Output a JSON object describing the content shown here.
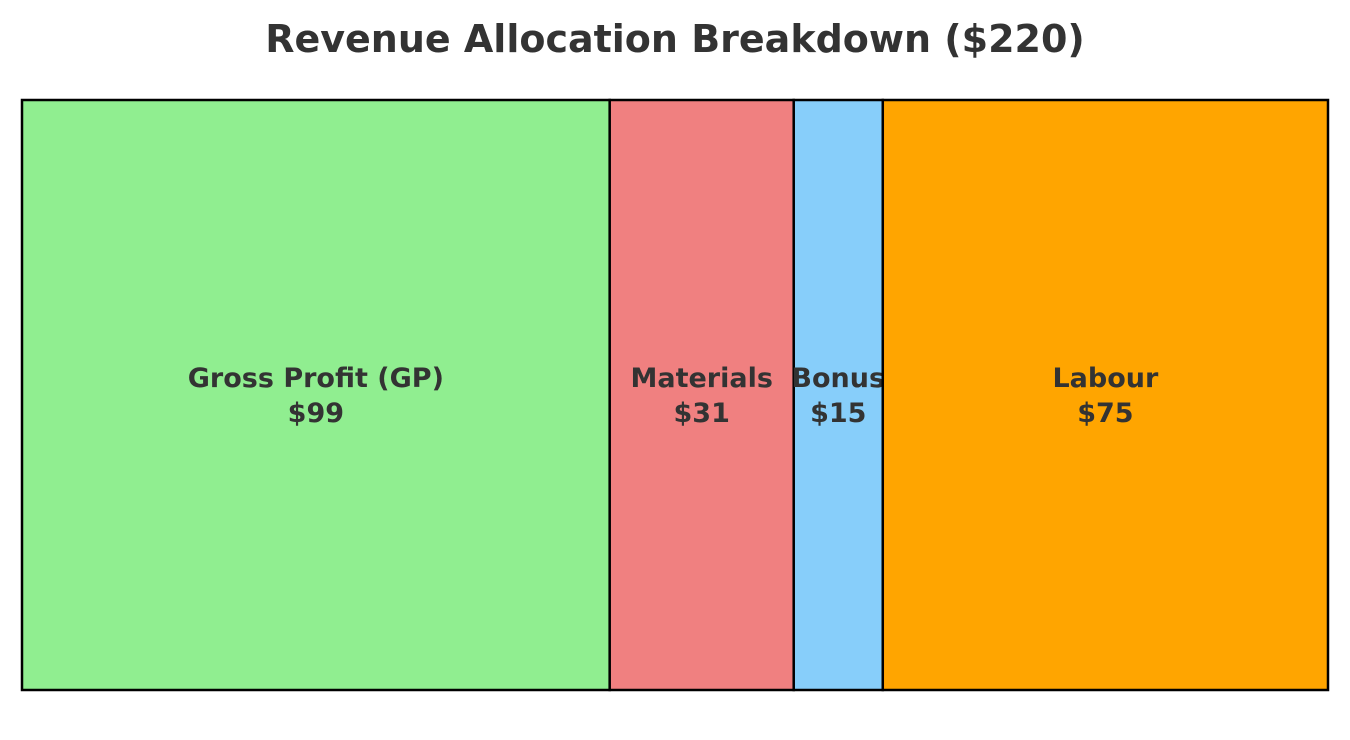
{
  "chart_data": {
    "type": "treemap",
    "title": "Revenue Allocation Breakdown ($220)",
    "total": 220,
    "segments": [
      {
        "name": "Gross Profit (GP)",
        "value": 99,
        "value_label": "$99",
        "color": "#90EE90"
      },
      {
        "name": "Materials",
        "value": 31,
        "value_label": "$31",
        "color": "#F08080"
      },
      {
        "name": "Bonus",
        "value": 15,
        "value_label": "$15",
        "color": "#87CEFA"
      },
      {
        "name": "Labour",
        "value": 75,
        "value_label": "$75",
        "color": "#FFA500"
      }
    ],
    "border_color": "#000000"
  }
}
